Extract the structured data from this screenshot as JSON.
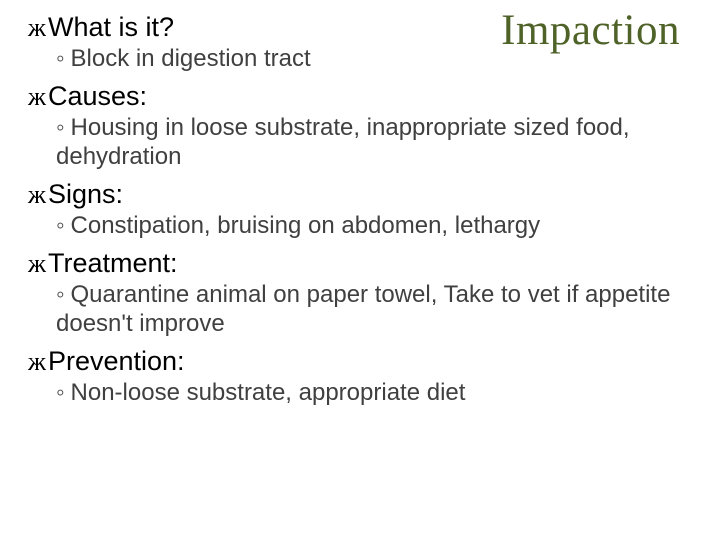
{
  "slide": {
    "title": "Impaction",
    "title_color": "#4f6228",
    "title_fontfamily": "Times New Roman",
    "title_fontsize": 43,
    "background_color": "#ffffff",
    "body_fontfamily": "Arial",
    "l1_fontsize": 27,
    "l1_color": "#000000",
    "l2_fontsize": 24,
    "l2_color": "#404040",
    "bullet_glyph": "ж",
    "sub_glyph": "◦",
    "sections": [
      {
        "heading": "What is it?",
        "body": "Block in digestion tract"
      },
      {
        "heading": "Causes:",
        "body": "Housing in loose substrate, inappropriate sized food, dehydration"
      },
      {
        "heading": "Signs:",
        "body": "Constipation, bruising on abdomen, lethargy"
      },
      {
        "heading": "Treatment:",
        "body": "Quarantine animal on paper towel, Take to vet if appetite doesn't improve"
      },
      {
        "heading": "Prevention:",
        "body": "Non-loose substrate, appropriate diet"
      }
    ]
  }
}
